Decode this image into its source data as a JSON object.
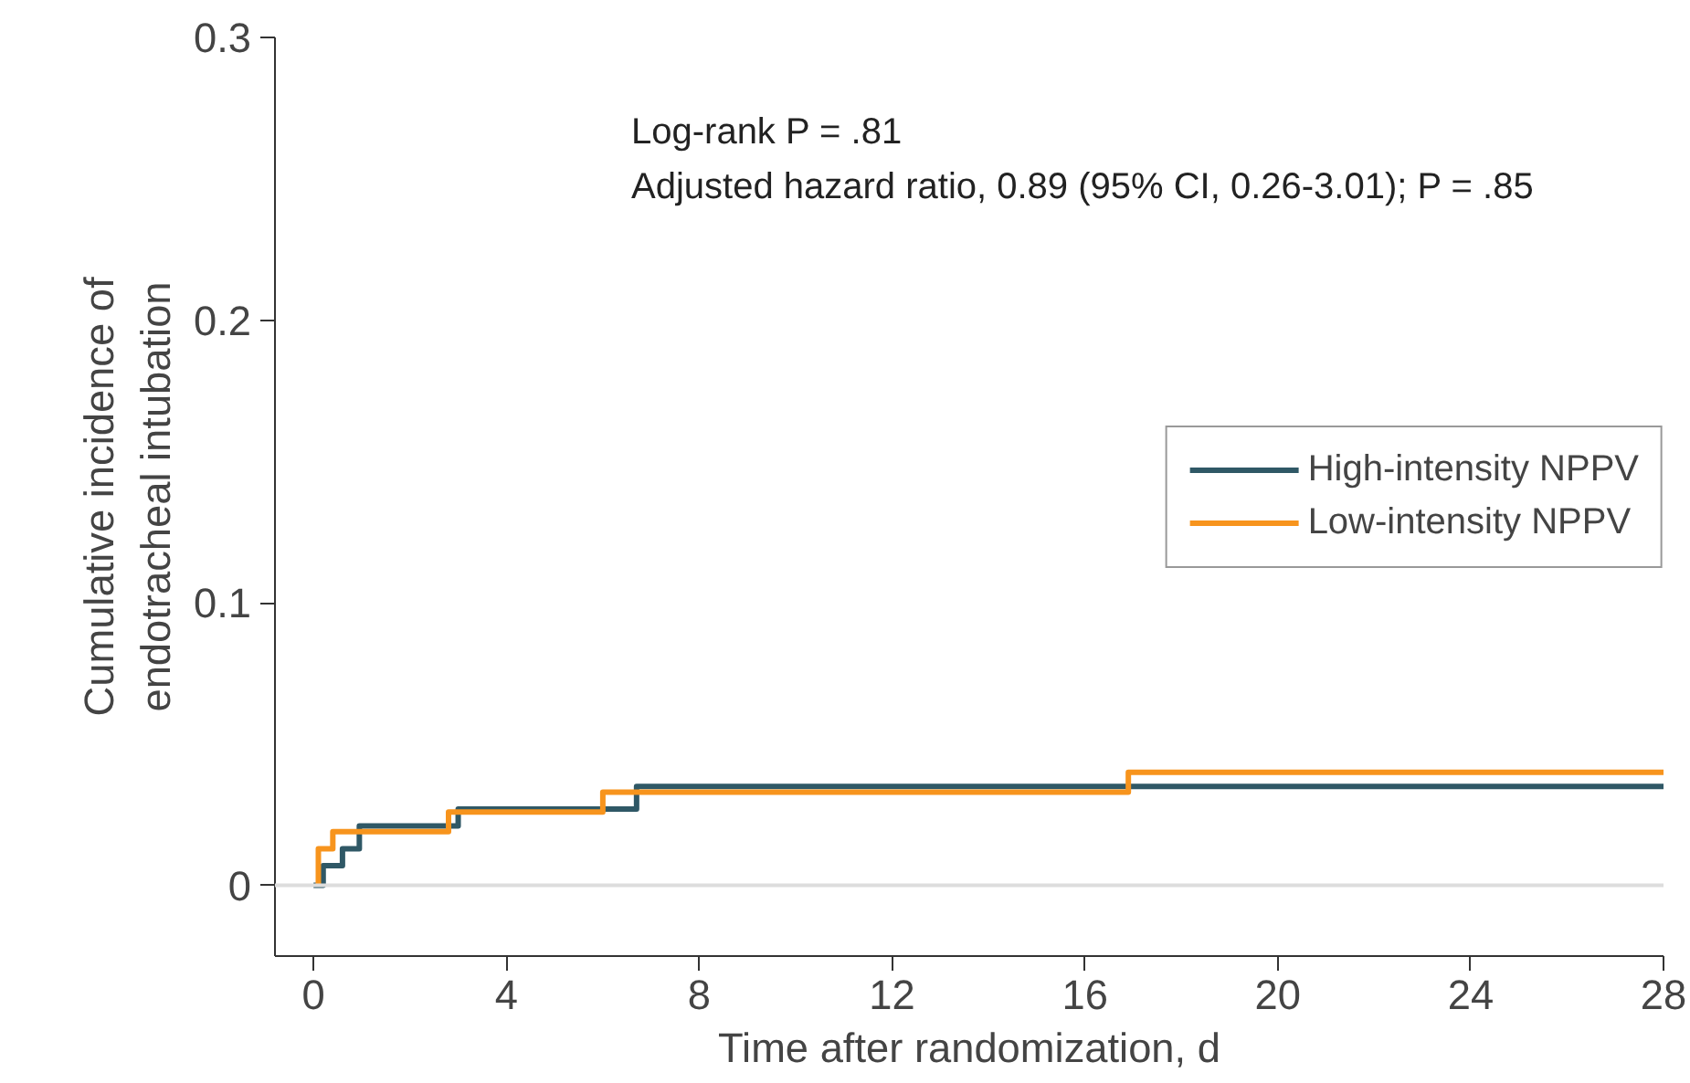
{
  "chart_data": {
    "type": "step",
    "xlabel": "Time after randomization, d",
    "ylabel": "Cumulative incidence of\nendotracheal intubation",
    "annotations": [
      "Log-rank P = .81",
      "Adjusted hazard ratio, 0.89 (95% CI, 0.26-3.01); P = .85"
    ],
    "series": [
      {
        "name": "High-intensity NPPV",
        "color": "#2f5866",
        "x": [
          0,
          0.2,
          0.6,
          0.95,
          3.0,
          6.7,
          28
        ],
        "values": [
          0,
          0.007,
          0.013,
          0.021,
          0.027,
          0.035,
          0.035
        ]
      },
      {
        "name": "Low-intensity NPPV",
        "color": "#f7941d",
        "x": [
          0.1,
          0.1,
          0.4,
          2.8,
          6.0,
          16.9,
          28
        ],
        "values": [
          0,
          0.013,
          0.019,
          0.026,
          0.033,
          0.04,
          0.04
        ]
      }
    ],
    "xlim": [
      -0.8,
      28
    ],
    "xticks": [
      0,
      4,
      8,
      12,
      16,
      20,
      24,
      28
    ],
    "ylim": [
      -0.025,
      0.3
    ],
    "yticks": [
      {
        "value": 0,
        "label": "0"
      },
      0.1,
      0.2,
      0.3
    ],
    "ref_lines": [
      {
        "axis": "y",
        "value": 0,
        "color": "#dddddd"
      }
    ],
    "grid": false,
    "legend": "right",
    "line_style": "solid"
  }
}
